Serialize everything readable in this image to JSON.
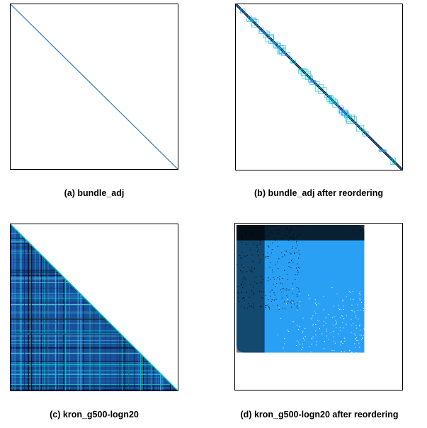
{
  "figure": {
    "panels": [
      {
        "id": "a",
        "caption": "(a) bundle_adj"
      },
      {
        "id": "b",
        "caption": "(b) bundle_adj after reordering"
      },
      {
        "id": "c",
        "caption": "(c) kron_g500-logn20"
      },
      {
        "id": "d",
        "caption": "(d) kron_g500-logn20 after reordering"
      }
    ]
  },
  "colors": {
    "dark": "#000000",
    "navy": "#0a1f5c",
    "blue": "#1e88e5",
    "light_blue": "#2aa0f5",
    "cyan": "#00d2d2",
    "frame": "#000000"
  }
}
